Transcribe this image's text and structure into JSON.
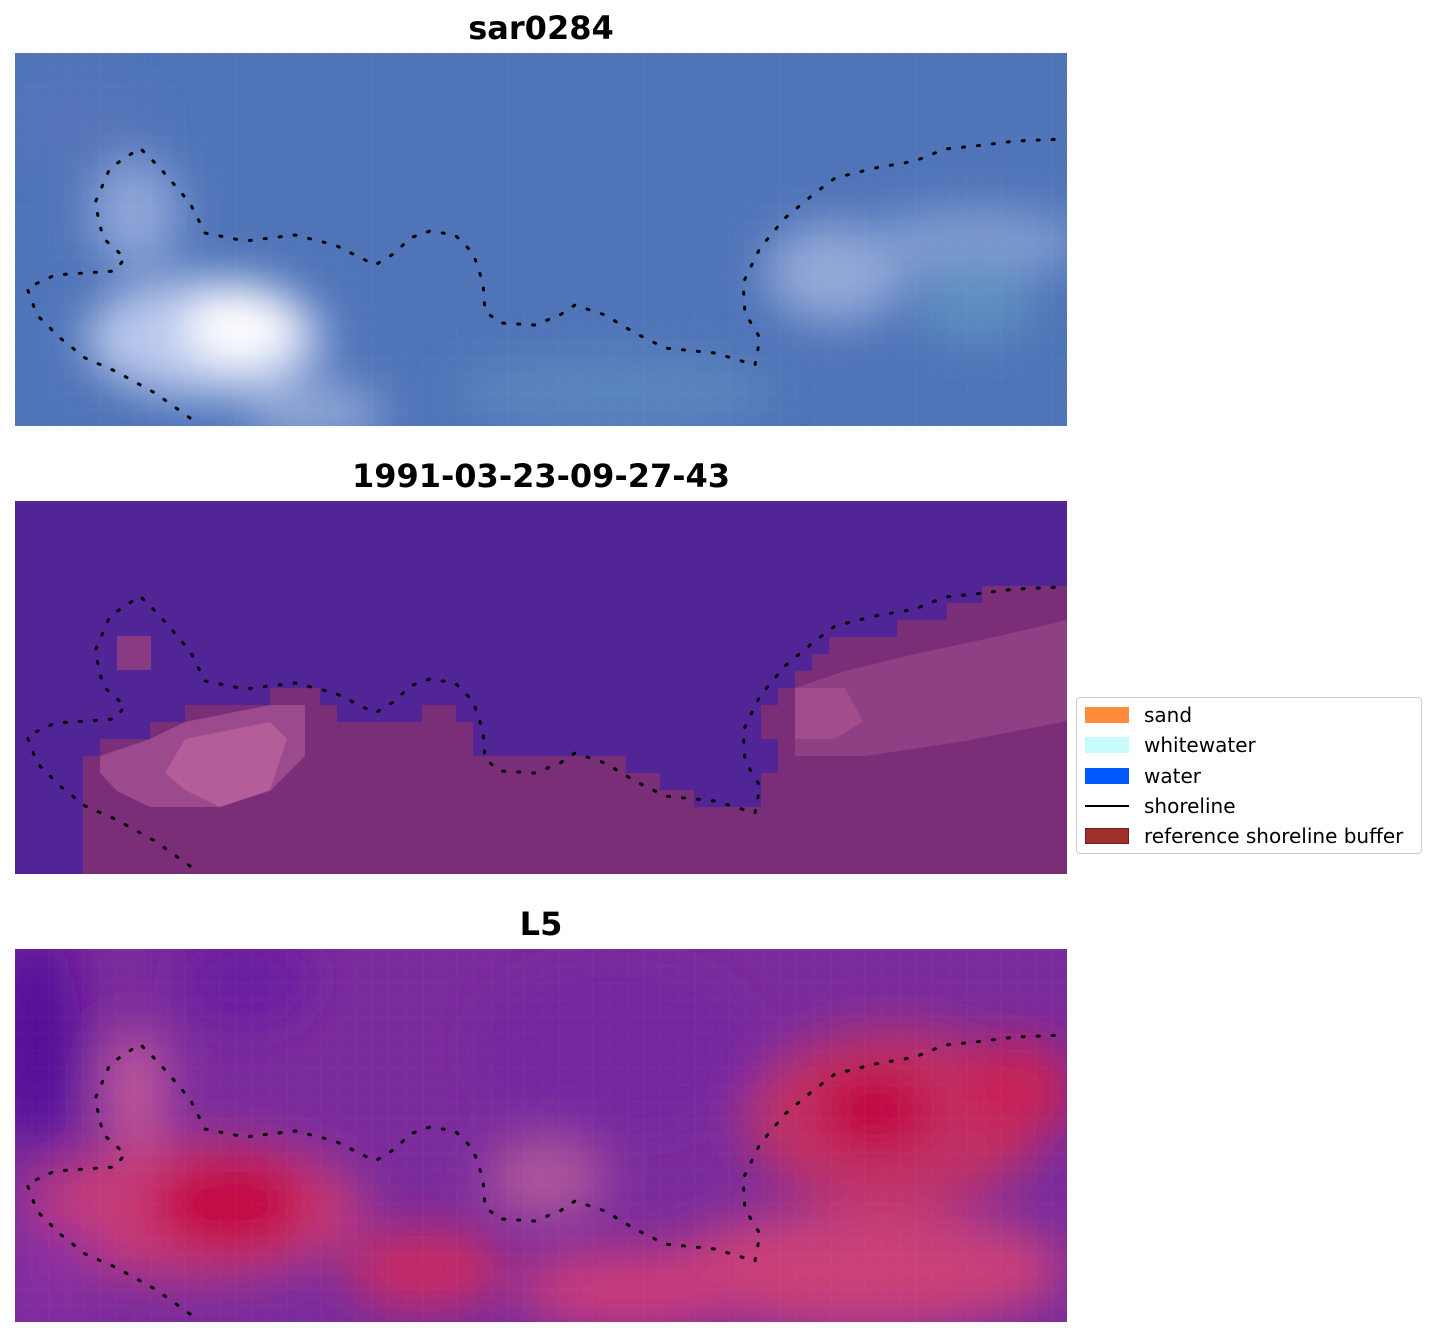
{
  "panels": [
    {
      "title": "sar0284",
      "kind": "rgb-image"
    },
    {
      "title": "1991-03-23-09-27-43",
      "kind": "classified-image"
    },
    {
      "title": "L5",
      "kind": "index-image"
    }
  ],
  "legend": {
    "items": [
      {
        "label": "sand",
        "color": "#ff8c3a",
        "type": "patch"
      },
      {
        "label": "whitewater",
        "color": "#c8fbfb",
        "type": "patch"
      },
      {
        "label": "water",
        "color": "#0058ff",
        "type": "patch"
      },
      {
        "label": "shoreline",
        "color": "#000000",
        "type": "line"
      },
      {
        "label": "reference shoreline buffer",
        "color": "#a0302e",
        "type": "patch"
      }
    ]
  }
}
